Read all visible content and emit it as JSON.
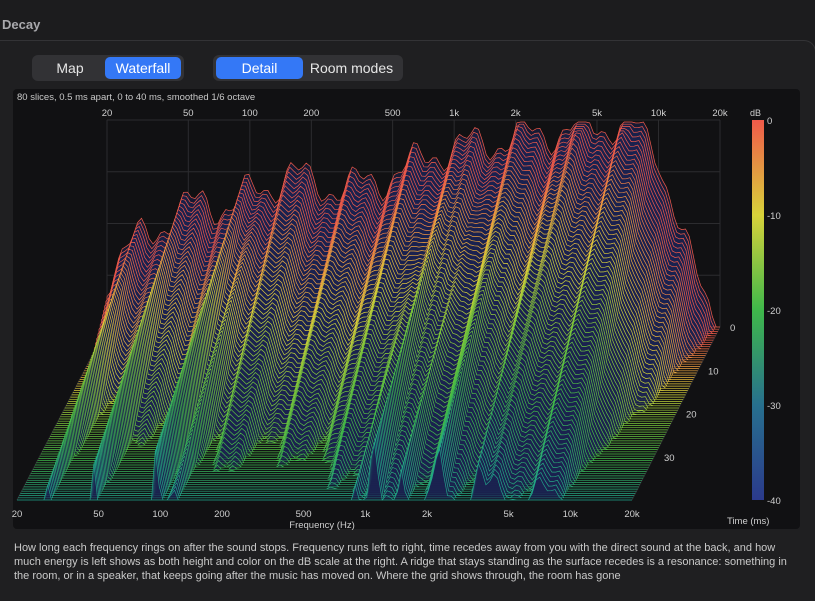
{
  "section_title": "Decay",
  "view_toggle": {
    "options": [
      "Map",
      "Waterfall"
    ],
    "selected": "Waterfall"
  },
  "detail_toggle": {
    "options": [
      "Detail",
      "Room modes"
    ],
    "selected": "Detail"
  },
  "plot_caption": "80 slices, 0.5 ms apart, 0 to 40 ms, smoothed 1/6 octave",
  "chart_data": {
    "type": "area",
    "top_frequency_ticks": [
      "20",
      "50",
      "100",
      "200",
      "500",
      "1k",
      "2k",
      "5k",
      "10k",
      "20k"
    ],
    "bottom_frequency_ticks": [
      "20",
      "50",
      "100",
      "200",
      "500",
      "1k",
      "2k",
      "5k",
      "10k",
      "20k"
    ],
    "xlabel": "Frequency (Hz)",
    "time_axis_label": "Time (ms)",
    "time_ticks": [
      "0",
      "10",
      "20",
      "30"
    ],
    "time_range_ms": [
      0,
      40
    ],
    "slices": 80,
    "colorbar_label": "dB",
    "colorbar_ticks": [
      "0",
      "-10",
      "-20",
      "-30",
      "-40"
    ],
    "db_range": [
      -40,
      0
    ],
    "colormap": [
      "#2b3a8c",
      "#27708e",
      "#21a58a",
      "#3fb84a",
      "#7cc83a",
      "#d8d23a",
      "#f0a040",
      "#f05a4a"
    ],
    "direct_sound_profile_db": [
      {
        "hz": 20,
        "db": -30
      },
      {
        "hz": 30,
        "db": -22
      },
      {
        "hz": 45,
        "db": -18
      },
      {
        "hz": 60,
        "db": -15
      },
      {
        "hz": 80,
        "db": -17
      },
      {
        "hz": 100,
        "db": -14
      },
      {
        "hz": 130,
        "db": -12
      },
      {
        "hz": 160,
        "db": -10
      },
      {
        "hz": 200,
        "db": -12
      },
      {
        "hz": 300,
        "db": -13
      },
      {
        "hz": 450,
        "db": -11
      },
      {
        "hz": 600,
        "db": -9
      },
      {
        "hz": 800,
        "db": -6
      },
      {
        "hz": 1000,
        "db": -5
      },
      {
        "hz": 1500,
        "db": -4
      },
      {
        "hz": 2000,
        "db": -3
      },
      {
        "hz": 3000,
        "db": -2
      },
      {
        "hz": 5000,
        "db": -1
      },
      {
        "hz": 7000,
        "db": 0
      },
      {
        "hz": 10000,
        "db": -6
      },
      {
        "hz": 15000,
        "db": -30
      },
      {
        "hz": 20000,
        "db": -40
      }
    ]
  },
  "description": "How long each frequency rings on after the sound stops. Frequency runs left to right, time recedes away from you with the direct sound at the back, and how much energy is left shows as both height and color on the dB scale at the right. A ridge that stays standing as the surface recedes is a resonance: something in the room, or in a speaker, that keeps going after the music has moved on. Where the grid shows through, the room has gone"
}
